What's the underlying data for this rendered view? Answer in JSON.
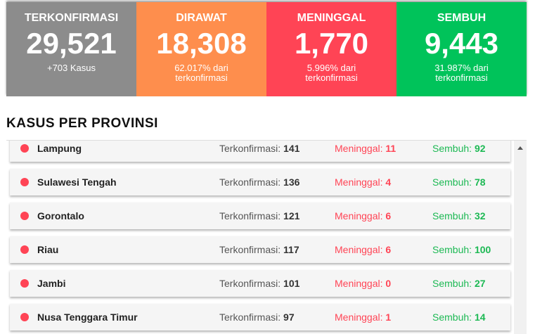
{
  "cards": [
    {
      "title": "TERKONFIRMASI",
      "value": "29,521",
      "sub": "+703 Kasus",
      "color": "#8c8c8c"
    },
    {
      "title": "DIRAWAT",
      "value": "18,308",
      "sub": "62.017% dari terkonfirmasi",
      "color": "#fe8e4d"
    },
    {
      "title": "MENINGGAL",
      "value": "1,770",
      "sub": "5.996% dari terkonfirmasi",
      "color": "#ff4455"
    },
    {
      "title": "SEMBUH",
      "value": "9,443",
      "sub": "31.987% dari terkonfirmasi",
      "color": "#00c35a"
    }
  ],
  "section_title": "KASUS PER PROVINSI",
  "labels": {
    "confirmed": "Terkonfirmasi: ",
    "deaths": "Meninggal: ",
    "recovered": "Sembuh: "
  },
  "provinces": [
    {
      "name": "Lampung",
      "confirmed": "141",
      "deaths": "11",
      "recovered": "92"
    },
    {
      "name": "Sulawesi Tengah",
      "confirmed": "136",
      "deaths": "4",
      "recovered": "78"
    },
    {
      "name": "Gorontalo",
      "confirmed": "121",
      "deaths": "6",
      "recovered": "32"
    },
    {
      "name": "Riau",
      "confirmed": "117",
      "deaths": "6",
      "recovered": "100"
    },
    {
      "name": "Jambi",
      "confirmed": "101",
      "deaths": "0",
      "recovered": "27"
    },
    {
      "name": "Nusa Tenggara Timur",
      "confirmed": "97",
      "deaths": "1",
      "recovered": "14"
    }
  ]
}
